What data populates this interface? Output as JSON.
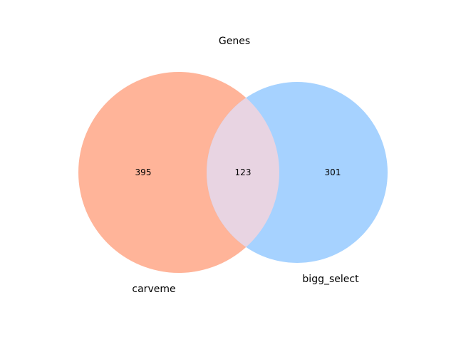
{
  "title": "Genes",
  "sets": [
    {
      "name": "carveme",
      "color": "#FF9F7F"
    },
    {
      "name": "bigg_select",
      "color": "#7FBFFF"
    }
  ],
  "regions": {
    "only_a": "395",
    "intersection": "123",
    "only_b": "301"
  },
  "colors": {
    "set_a_fill": "#FFB499",
    "set_b_fill": "#A6D2FF",
    "intersection_fill": "#E8D4E2"
  }
}
